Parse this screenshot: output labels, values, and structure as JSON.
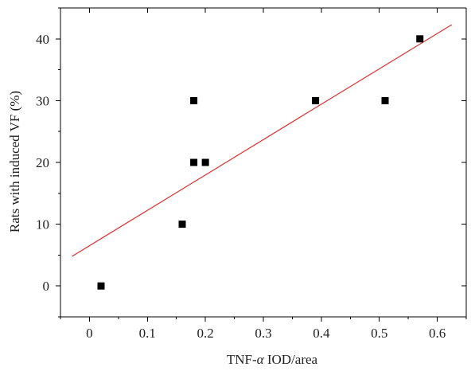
{
  "chart_data": {
    "type": "scatter",
    "title": "",
    "xlabel": {
      "prefix": "TNF-",
      "symbol": "α",
      "suffix": " IOD/area"
    },
    "ylabel": "Rats with induced VF (%)",
    "xlim": [
      -0.05,
      0.65
    ],
    "ylim": [
      -5,
      45
    ],
    "x_ticks": [
      0,
      0.1,
      0.2,
      0.3,
      0.4,
      0.5,
      0.6
    ],
    "x_tick_labels": [
      "0",
      "0.1",
      "0.2",
      "0.3",
      "0.4",
      "0.5",
      "0.6"
    ],
    "y_ticks": [
      0,
      10,
      20,
      30,
      40
    ],
    "y_tick_labels": [
      "0",
      "10",
      "20",
      "30",
      "40"
    ],
    "grid": false,
    "legend": "none",
    "series": [
      {
        "marker": "square",
        "color": "#000000",
        "points": [
          {
            "x": 0.02,
            "y": 0
          },
          {
            "x": 0.16,
            "y": 10
          },
          {
            "x": 0.18,
            "y": 20
          },
          {
            "x": 0.2,
            "y": 20
          },
          {
            "x": 0.18,
            "y": 30
          },
          {
            "x": 0.39,
            "y": 30
          },
          {
            "x": 0.51,
            "y": 30
          },
          {
            "x": 0.57,
            "y": 40
          }
        ]
      }
    ],
    "fit_line": {
      "color": "#e03030",
      "x": [
        -0.03,
        0.625
      ],
      "y": [
        4.8,
        42.3
      ]
    }
  }
}
